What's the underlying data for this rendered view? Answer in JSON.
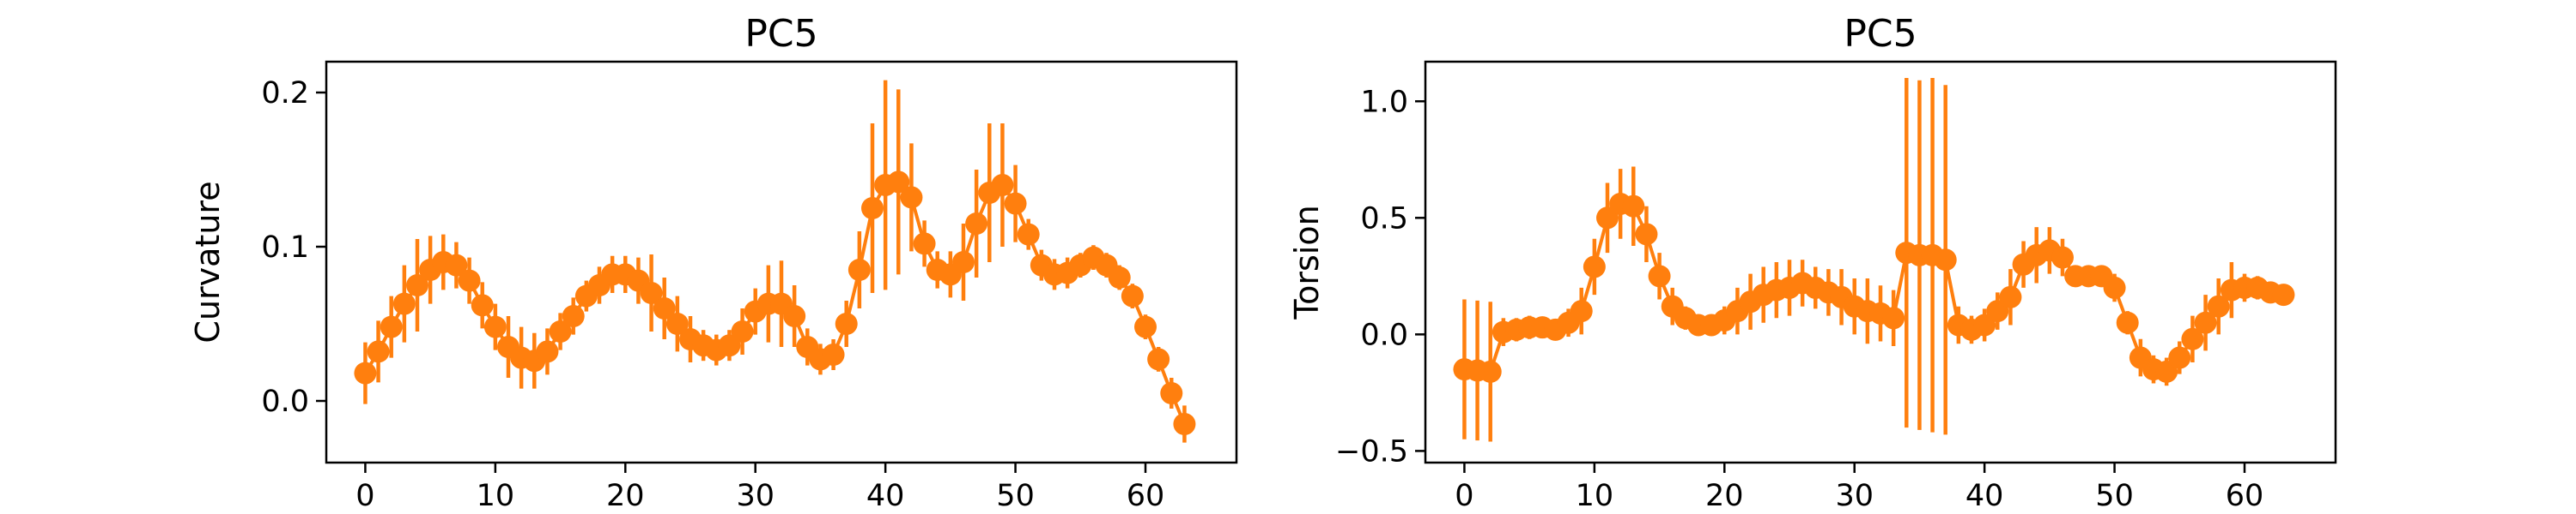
{
  "chart_data": [
    {
      "type": "line",
      "title": "PC5",
      "xlabel": "",
      "ylabel": "Curvature",
      "xlim": [
        -3,
        67
      ],
      "ylim": [
        -0.04,
        0.22
      ],
      "xticks": [
        0,
        10,
        20,
        30,
        40,
        50,
        60
      ],
      "yticks": [
        0.0,
        0.1,
        0.2
      ],
      "ytick_labels": [
        "0.0",
        "0.1",
        "0.2"
      ],
      "grid": false,
      "color": "#ff7f0e",
      "series": [
        {
          "x": [
            0,
            1,
            2,
            3,
            4,
            5,
            6,
            7,
            8,
            9,
            10,
            11,
            12,
            13,
            14,
            15,
            16,
            17,
            18,
            19,
            20,
            21,
            22,
            23,
            24,
            25,
            26,
            27,
            28,
            29,
            30,
            31,
            32,
            33,
            34,
            35,
            36,
            37,
            38,
            39,
            40,
            41,
            42,
            43,
            44,
            45,
            46,
            47,
            48,
            49,
            50,
            51,
            52,
            53,
            54,
            55,
            56,
            57,
            58,
            59,
            60,
            61,
            62,
            63
          ],
          "y": [
            0.018,
            0.032,
            0.048,
            0.063,
            0.075,
            0.085,
            0.09,
            0.088,
            0.078,
            0.062,
            0.048,
            0.035,
            0.028,
            0.026,
            0.032,
            0.045,
            0.055,
            0.068,
            0.075,
            0.082,
            0.082,
            0.078,
            0.07,
            0.06,
            0.05,
            0.04,
            0.036,
            0.033,
            0.036,
            0.045,
            0.058,
            0.063,
            0.063,
            0.055,
            0.035,
            0.027,
            0.03,
            0.05,
            0.085,
            0.125,
            0.14,
            0.142,
            0.132,
            0.102,
            0.085,
            0.082,
            0.09,
            0.115,
            0.135,
            0.14,
            0.128,
            0.108,
            0.088,
            0.082,
            0.083,
            0.088,
            0.093,
            0.088,
            0.08,
            0.068,
            0.048,
            0.027,
            0.005,
            -0.015
          ],
          "err": [
            0.02,
            0.02,
            0.02,
            0.025,
            0.03,
            0.022,
            0.018,
            0.015,
            0.015,
            0.015,
            0.015,
            0.02,
            0.02,
            0.018,
            0.015,
            0.012,
            0.012,
            0.01,
            0.012,
            0.012,
            0.012,
            0.015,
            0.025,
            0.02,
            0.018,
            0.015,
            0.01,
            0.01,
            0.01,
            0.015,
            0.015,
            0.025,
            0.028,
            0.02,
            0.012,
            0.01,
            0.01,
            0.015,
            0.025,
            0.055,
            0.068,
            0.06,
            0.035,
            0.015,
            0.012,
            0.015,
            0.025,
            0.035,
            0.045,
            0.04,
            0.025,
            0.01,
            0.01,
            0.01,
            0.01,
            0.008,
            0.008,
            0.008,
            0.008,
            0.008,
            0.008,
            0.008,
            0.01,
            0.012
          ]
        }
      ]
    },
    {
      "type": "line",
      "title": "PC5",
      "xlabel": "",
      "ylabel": "Torsion",
      "xlim": [
        -3,
        67
      ],
      "ylim": [
        -0.55,
        1.17
      ],
      "xticks": [
        0,
        10,
        20,
        30,
        40,
        50,
        60
      ],
      "yticks": [
        -0.5,
        0.0,
        0.5,
        1.0
      ],
      "ytick_labels": [
        "−0.5",
        "0.0",
        "0.5",
        "1.0"
      ],
      "grid": false,
      "color": "#ff7f0e",
      "series": [
        {
          "x": [
            0,
            1,
            2,
            3,
            4,
            5,
            6,
            7,
            8,
            9,
            10,
            11,
            12,
            13,
            14,
            15,
            16,
            17,
            18,
            19,
            20,
            21,
            22,
            23,
            24,
            25,
            26,
            27,
            28,
            29,
            30,
            31,
            32,
            33,
            34,
            35,
            36,
            37,
            38,
            39,
            40,
            41,
            42,
            43,
            44,
            45,
            46,
            47,
            48,
            49,
            50,
            51,
            52,
            53,
            54,
            55,
            56,
            57,
            58,
            59,
            60,
            61,
            62,
            63
          ],
          "y": [
            -0.15,
            -0.155,
            -0.16,
            0.01,
            0.02,
            0.03,
            0.03,
            0.02,
            0.05,
            0.1,
            0.29,
            0.5,
            0.56,
            0.55,
            0.43,
            0.25,
            0.12,
            0.07,
            0.04,
            0.04,
            0.06,
            0.1,
            0.14,
            0.17,
            0.19,
            0.2,
            0.22,
            0.2,
            0.18,
            0.16,
            0.12,
            0.1,
            0.09,
            0.07,
            0.35,
            0.34,
            0.34,
            0.32,
            0.04,
            0.02,
            0.04,
            0.1,
            0.16,
            0.3,
            0.34,
            0.36,
            0.33,
            0.25,
            0.25,
            0.25,
            0.2,
            0.05,
            -0.1,
            -0.15,
            -0.16,
            -0.1,
            -0.02,
            0.05,
            0.12,
            0.19,
            0.2,
            0.2,
            0.18,
            0.17
          ],
          "err": [
            0.3,
            0.3,
            0.3,
            0.06,
            0.05,
            0.05,
            0.04,
            0.04,
            0.06,
            0.1,
            0.12,
            0.15,
            0.15,
            0.17,
            0.12,
            0.1,
            0.08,
            0.05,
            0.03,
            0.04,
            0.06,
            0.1,
            0.12,
            0.12,
            0.12,
            0.12,
            0.1,
            0.09,
            0.1,
            0.12,
            0.12,
            0.14,
            0.12,
            0.12,
            0.75,
            0.75,
            0.76,
            0.75,
            0.08,
            0.06,
            0.07,
            0.08,
            0.12,
            0.1,
            0.12,
            0.1,
            0.08,
            0.04,
            0.03,
            0.03,
            0.06,
            0.05,
            0.08,
            0.06,
            0.06,
            0.07,
            0.1,
            0.12,
            0.12,
            0.12,
            0.06,
            0.05,
            0.04,
            0.04
          ]
        }
      ]
    }
  ]
}
